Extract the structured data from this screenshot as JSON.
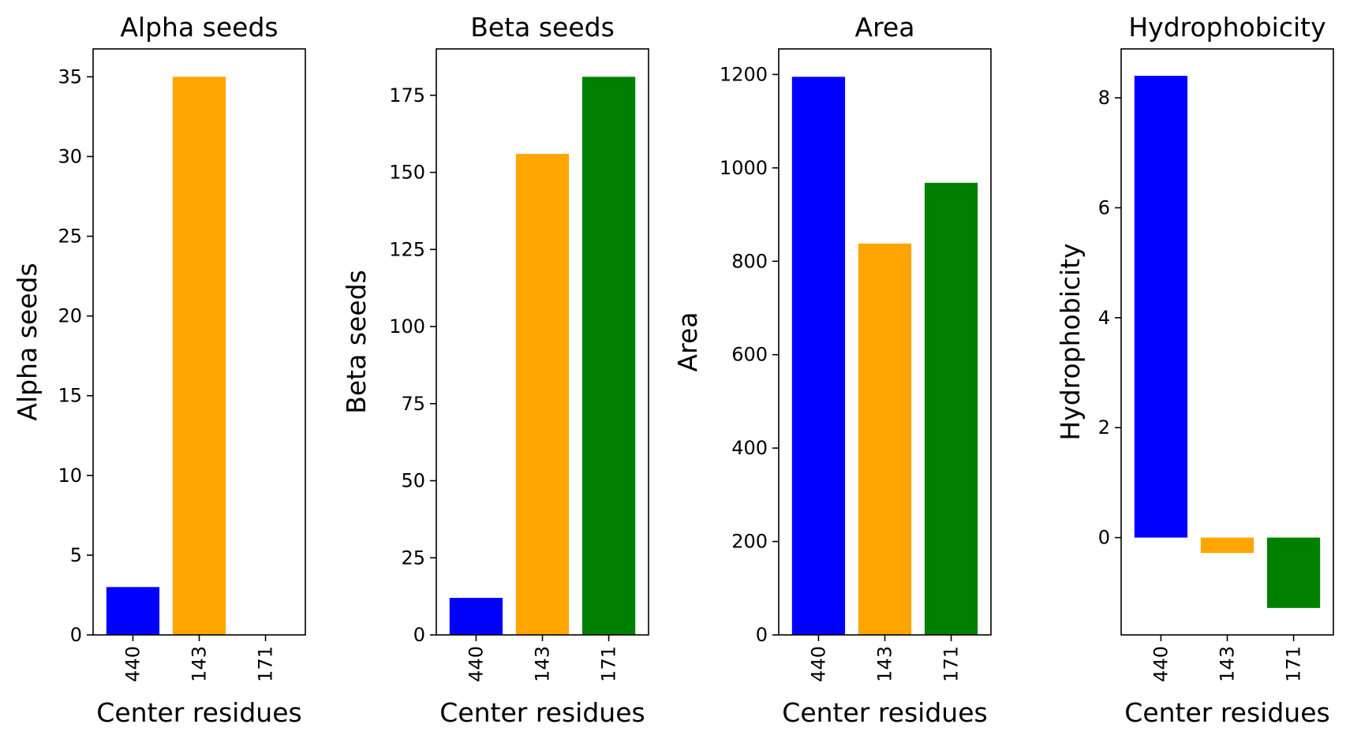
{
  "chart_data": [
    {
      "type": "bar",
      "title": "Alpha seeds",
      "xlabel": "Center residues",
      "ylabel": "Alpha seeds",
      "categories": [
        "440",
        "143",
        "171"
      ],
      "values": [
        3,
        35,
        0
      ],
      "colors": [
        "#0000ff",
        "#ffa500",
        "#008000"
      ],
      "ylim": [
        0,
        36.75
      ],
      "yticks": [
        0,
        5,
        10,
        15,
        20,
        25,
        30,
        35
      ],
      "grid": false
    },
    {
      "type": "bar",
      "title": "Beta seeds",
      "xlabel": "Center residues",
      "ylabel": "Beta seeds",
      "categories": [
        "440",
        "143",
        "171"
      ],
      "values": [
        12,
        156,
        181
      ],
      "colors": [
        "#0000ff",
        "#ffa500",
        "#008000"
      ],
      "ylim": [
        0,
        190.05
      ],
      "yticks": [
        0,
        25,
        50,
        75,
        100,
        125,
        150,
        175
      ],
      "grid": false
    },
    {
      "type": "bar",
      "title": "Area",
      "xlabel": "Center residues",
      "ylabel": "Area",
      "categories": [
        "440",
        "143",
        "171"
      ],
      "values": [
        1195,
        838,
        968
      ],
      "colors": [
        "#0000ff",
        "#ffa500",
        "#008000"
      ],
      "ylim": [
        0,
        1254.75
      ],
      "yticks": [
        0,
        200,
        400,
        600,
        800,
        1000,
        1200
      ],
      "grid": false
    },
    {
      "type": "bar",
      "title": "Hydrophobicity",
      "xlabel": "Center residues",
      "ylabel": "Hydrophobicity",
      "categories": [
        "440",
        "143",
        "171"
      ],
      "values": [
        8.4,
        -0.28,
        -1.28
      ],
      "colors": [
        "#0000ff",
        "#ffa500",
        "#008000"
      ],
      "ylim": [
        -1.77,
        8.89
      ],
      "yticks": [
        0,
        2,
        4,
        6,
        8
      ],
      "grid": false
    }
  ]
}
